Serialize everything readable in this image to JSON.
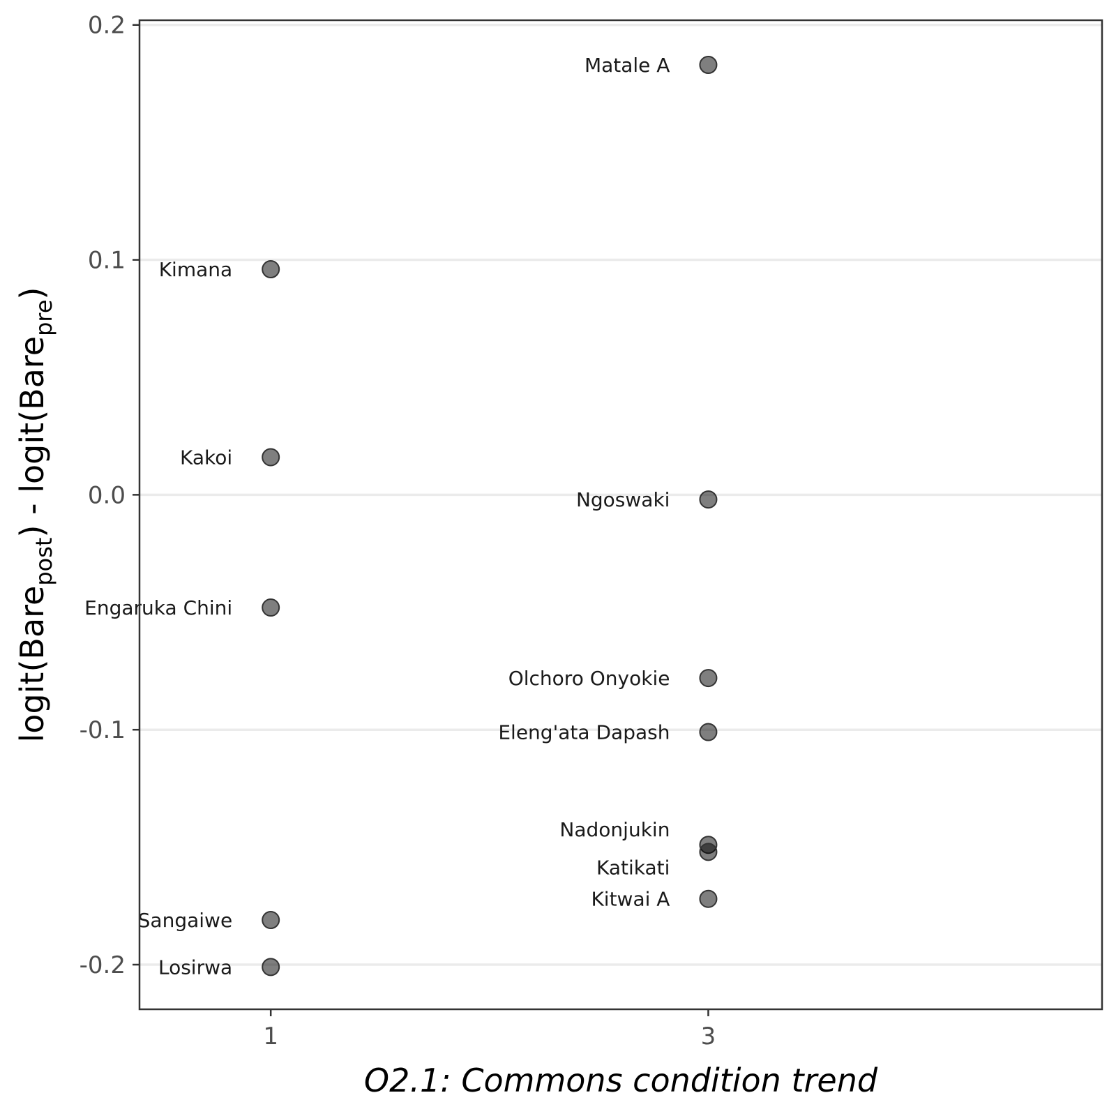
{
  "chart_data": {
    "type": "scatter",
    "xlabel": "O2.1: Commons condition trend",
    "ylabel": {
      "prefix": "logit(Bare",
      "sub1": "post",
      "middle": ") - logit(Bare",
      "sub2": "pre",
      "suffix": ")"
    },
    "xlim": [
      0.4,
      4.8
    ],
    "ylim": [
      -0.219,
      0.202
    ],
    "x_ticks": [
      {
        "value": 1,
        "label": "1"
      },
      {
        "value": 3,
        "label": "3"
      }
    ],
    "y_ticks": [
      {
        "value": 0.2,
        "label": "0.2"
      },
      {
        "value": 0.1,
        "label": "0.1"
      },
      {
        "value": 0.0,
        "label": "0.0"
      },
      {
        "value": -0.1,
        "label": "-0.1"
      },
      {
        "value": -0.2,
        "label": "-0.2"
      }
    ],
    "grid": "horizontal-major",
    "points": [
      {
        "label": "Matale A",
        "x": 3,
        "y": 0.183
      },
      {
        "label": "Kimana",
        "x": 1,
        "y": 0.096
      },
      {
        "label": "Kakoi",
        "x": 1,
        "y": 0.016
      },
      {
        "label": "Ngoswaki",
        "x": 3,
        "y": -0.002
      },
      {
        "label": "Engaruka Chini",
        "x": 1,
        "y": -0.048
      },
      {
        "label": "Olchoro Onyokie",
        "x": 3,
        "y": -0.078
      },
      {
        "label": "Eleng'ata Dapash",
        "x": 3,
        "y": -0.101
      },
      {
        "label": "Nadonjukin",
        "x": 3,
        "y": -0.149
      },
      {
        "label": "Katikati",
        "x": 3,
        "y": -0.152
      },
      {
        "label": "Kitwai A",
        "x": 3,
        "y": -0.172
      },
      {
        "label": "Sangaiwe",
        "x": 1,
        "y": -0.181
      },
      {
        "label": "Losirwa",
        "x": 1,
        "y": -0.201
      }
    ]
  }
}
